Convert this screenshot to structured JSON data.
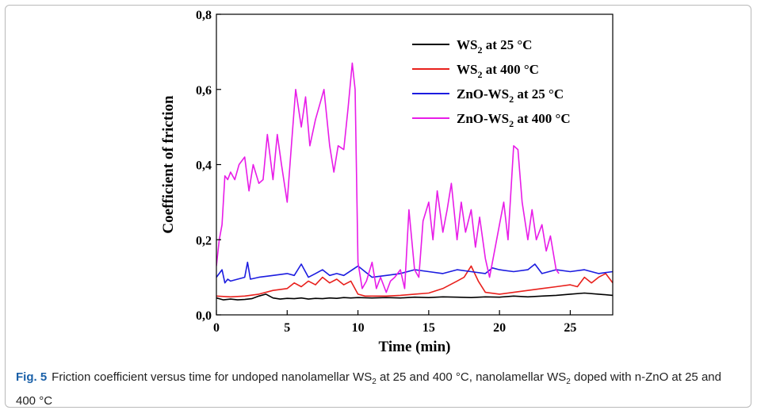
{
  "caption": {
    "label": "Fig. 5",
    "p1": "Friction coefficient versus time for undoped nanolamellar WS",
    "p2": " at 25 and 400 °C, nanolamellar WS",
    "p3": " doped with n-ZnO at 25 and 400 °C",
    "sub": "2"
  },
  "chart_data": {
    "type": "line",
    "title": "",
    "xlabel": "Time (min)",
    "ylabel": "Coefficient of friction",
    "xlim": [
      0,
      28
    ],
    "ylim": [
      0,
      0.8
    ],
    "xticks": [
      0,
      5,
      10,
      15,
      20,
      25
    ],
    "xtick_labels": [
      "0",
      "5",
      "10",
      "15",
      "20",
      "25"
    ],
    "yticks": [
      0,
      0.2,
      0.4,
      0.6,
      0.8
    ],
    "ytick_labels": [
      "0,0",
      "0,2",
      "0,4",
      "0,6",
      "0,8"
    ],
    "legend_position": "top-right",
    "series": [
      {
        "name": "WS2 at 25 °C",
        "legend_main": "WS",
        "legend_sub": "2",
        "legend_rest": " at 25 °C",
        "color": "#000000",
        "x": [
          0,
          0.5,
          1,
          1.5,
          2,
          2.5,
          3,
          3.5,
          4,
          4.5,
          5,
          5.5,
          6,
          6.5,
          7,
          7.5,
          8,
          8.5,
          9,
          9.5,
          10,
          11,
          12,
          13,
          14,
          15,
          16,
          17,
          18,
          19,
          20,
          21,
          22,
          23,
          24,
          25,
          26,
          27,
          28
        ],
        "y": [
          0.045,
          0.04,
          0.042,
          0.04,
          0.041,
          0.043,
          0.05,
          0.055,
          0.045,
          0.042,
          0.044,
          0.043,
          0.045,
          0.042,
          0.044,
          0.043,
          0.045,
          0.044,
          0.046,
          0.045,
          0.046,
          0.045,
          0.046,
          0.045,
          0.047,
          0.046,
          0.048,
          0.047,
          0.046,
          0.048,
          0.047,
          0.05,
          0.048,
          0.05,
          0.052,
          0.055,
          0.058,
          0.055,
          0.052
        ]
      },
      {
        "name": "WS2 at 400 °C",
        "legend_main": "WS",
        "legend_sub": "2",
        "legend_rest": " at 400 °C",
        "color": "#e8201c",
        "x": [
          0,
          1,
          2,
          3,
          4,
          5,
          5.5,
          6,
          6.5,
          7,
          7.5,
          8,
          8.5,
          9,
          9.5,
          10,
          10.5,
          11,
          12,
          13,
          14,
          15,
          16,
          17,
          17.5,
          18,
          18.5,
          19,
          20,
          21,
          22,
          23,
          24,
          25,
          25.5,
          26,
          26.5,
          27,
          27.5,
          28
        ],
        "y": [
          0.05,
          0.048,
          0.05,
          0.055,
          0.065,
          0.07,
          0.085,
          0.075,
          0.09,
          0.08,
          0.1,
          0.085,
          0.095,
          0.08,
          0.09,
          0.055,
          0.05,
          0.05,
          0.05,
          0.052,
          0.055,
          0.058,
          0.07,
          0.09,
          0.1,
          0.13,
          0.09,
          0.06,
          0.055,
          0.06,
          0.065,
          0.07,
          0.075,
          0.08,
          0.075,
          0.1,
          0.085,
          0.1,
          0.11,
          0.085
        ]
      },
      {
        "name": "ZnO-WS2 at 25 °C",
        "legend_main": "ZnO-WS",
        "legend_sub": "2",
        "legend_rest": " at 25 °C",
        "color": "#1c1ce0",
        "x": [
          0,
          0.4,
          0.6,
          0.8,
          1,
          1.5,
          2,
          2.2,
          2.4,
          3,
          4,
          5,
          5.5,
          6,
          6.5,
          7,
          7.5,
          8,
          8.5,
          9,
          10,
          11,
          12,
          13,
          14,
          15,
          16,
          17,
          18,
          19,
          19.5,
          20,
          21,
          22,
          22.5,
          23,
          24,
          25,
          26,
          27,
          28
        ],
        "y": [
          0.1,
          0.12,
          0.085,
          0.095,
          0.09,
          0.095,
          0.1,
          0.14,
          0.095,
          0.1,
          0.105,
          0.11,
          0.105,
          0.135,
          0.1,
          0.11,
          0.12,
          0.105,
          0.11,
          0.105,
          0.13,
          0.1,
          0.105,
          0.11,
          0.12,
          0.115,
          0.11,
          0.12,
          0.115,
          0.11,
          0.125,
          0.12,
          0.115,
          0.12,
          0.135,
          0.11,
          0.12,
          0.115,
          0.12,
          0.11,
          0.115
        ]
      },
      {
        "name": "ZnO-WS2 at 400 °C",
        "legend_main": "ZnO-WS",
        "legend_sub": "2",
        "legend_rest": " at 400 °C",
        "color": "#e81ce8",
        "x": [
          0,
          0.2,
          0.4,
          0.6,
          0.8,
          1,
          1.3,
          1.6,
          2,
          2.3,
          2.6,
          3,
          3.3,
          3.6,
          4,
          4.3,
          4.6,
          5,
          5.3,
          5.6,
          6,
          6.3,
          6.6,
          7,
          7.3,
          7.6,
          8,
          8.3,
          8.6,
          9,
          9.3,
          9.6,
          9.8,
          10,
          10.3,
          10.6,
          11,
          11.3,
          11.6,
          12,
          12.3,
          12.6,
          13,
          13.3,
          13.6,
          14,
          14.3,
          14.6,
          15,
          15.3,
          15.6,
          16,
          16.3,
          16.6,
          17,
          17.3,
          17.6,
          18,
          18.3,
          18.6,
          19,
          19.3,
          19.6,
          20,
          20.3,
          20.6,
          21,
          21.3,
          21.6,
          22,
          22.3,
          22.6,
          23,
          23.3,
          23.6,
          24,
          24.2
        ],
        "y": [
          0.13,
          0.2,
          0.24,
          0.37,
          0.36,
          0.38,
          0.36,
          0.4,
          0.42,
          0.33,
          0.4,
          0.35,
          0.36,
          0.48,
          0.36,
          0.48,
          0.4,
          0.3,
          0.45,
          0.6,
          0.5,
          0.58,
          0.45,
          0.52,
          0.56,
          0.6,
          0.45,
          0.38,
          0.45,
          0.44,
          0.55,
          0.67,
          0.6,
          0.14,
          0.07,
          0.09,
          0.14,
          0.07,
          0.1,
          0.06,
          0.09,
          0.1,
          0.12,
          0.07,
          0.28,
          0.12,
          0.1,
          0.25,
          0.3,
          0.2,
          0.33,
          0.22,
          0.28,
          0.35,
          0.2,
          0.3,
          0.22,
          0.28,
          0.18,
          0.26,
          0.15,
          0.1,
          0.16,
          0.24,
          0.3,
          0.2,
          0.45,
          0.44,
          0.3,
          0.2,
          0.28,
          0.2,
          0.24,
          0.17,
          0.21,
          0.12,
          0.11
        ]
      }
    ]
  }
}
